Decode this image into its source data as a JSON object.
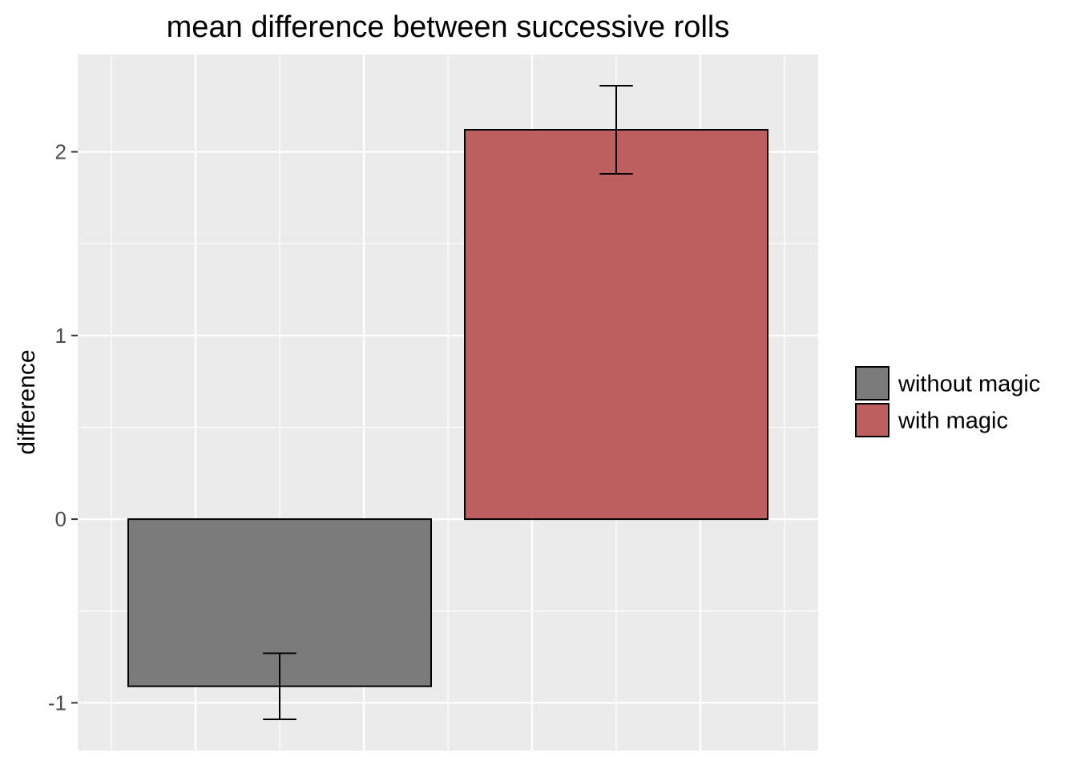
{
  "chart_data": {
    "type": "bar",
    "title": "mean difference between successive rolls",
    "xlabel": "",
    "ylabel": "difference",
    "categories": [
      "without magic",
      "with magic"
    ],
    "values": [
      -0.91,
      2.12
    ],
    "error_bars": [
      {
        "low": -1.09,
        "high": -0.73
      },
      {
        "low": 1.88,
        "high": 2.36
      }
    ],
    "colors": [
      "#7b7b7b",
      "#bd5f5f"
    ],
    "ylim": [
      -1.26,
      2.53
    ],
    "yticks": [
      -1,
      0,
      1,
      2
    ],
    "grid": true,
    "background": "#ebebeb",
    "legend": {
      "position": "right",
      "entries": [
        "without magic",
        "with magic"
      ]
    }
  }
}
